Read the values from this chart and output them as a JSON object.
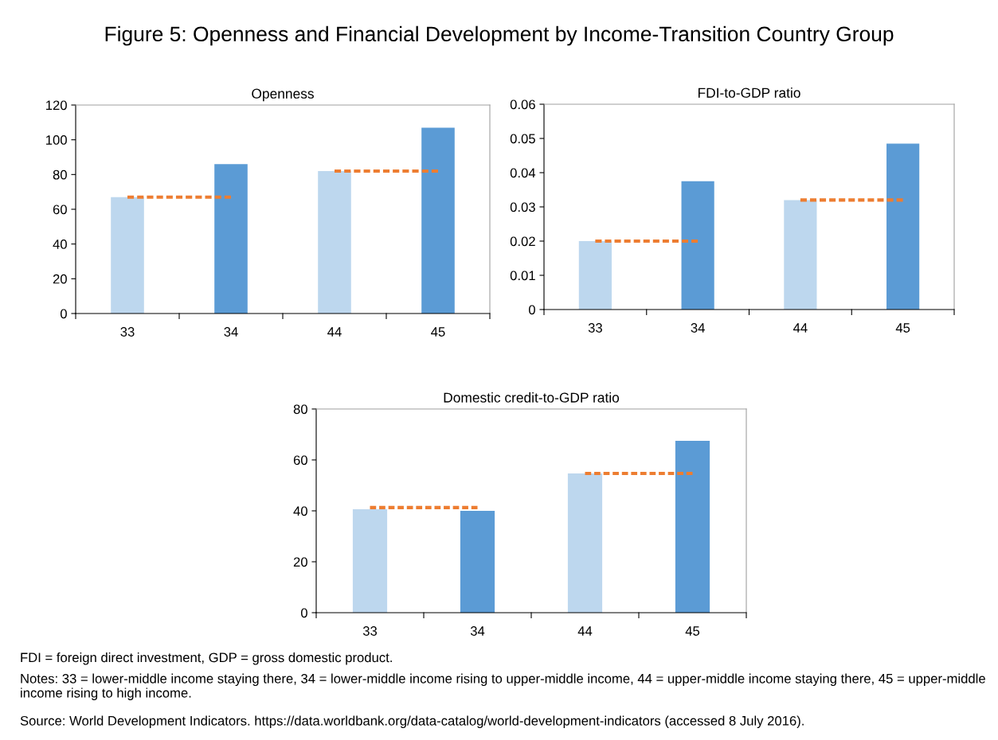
{
  "chart_data": [
    {
      "type": "bar",
      "title": "Figure 5: Openness and Financial Development by Income-Transition Country Group",
      "subtitle": "Openness",
      "categories": [
        "33",
        "34",
        "44",
        "45"
      ],
      "series": [
        {
          "colors": [
            "#bdd7ee",
            "#5b9bd5",
            "#bdd7ee",
            "#5b9bd5"
          ],
          "values": [
            67,
            86,
            82,
            107
          ]
        },
        {
          "type": "line",
          "color": "#ed7d31",
          "line_style": "dashed",
          "marker": "none",
          "values": [
            67,
            67,
            null,
            null
          ]
        },
        {
          "type": "line",
          "color": "#ed7d31",
          "line_style": "dashed",
          "marker": "none",
          "values": [
            null,
            null,
            82,
            82
          ]
        }
      ],
      "ylim": [
        0,
        120
      ],
      "yticks": [
        0,
        20,
        40,
        60,
        80,
        100,
        120
      ],
      "grid": false,
      "legend": false
    },
    {
      "type": "bar",
      "subtitle": "FDI-to-GDP ratio",
      "categories": [
        "33",
        "34",
        "44",
        "45"
      ],
      "series": [
        {
          "colors": [
            "#bdd7ee",
            "#5b9bd5",
            "#bdd7ee",
            "#5b9bd5"
          ],
          "values": [
            0.02,
            0.0375,
            0.032,
            0.0485
          ]
        },
        {
          "type": "line",
          "color": "#ed7d31",
          "line_style": "dashed",
          "marker": "none",
          "values": [
            0.02,
            0.02,
            null,
            null
          ]
        },
        {
          "type": "line",
          "color": "#ed7d31",
          "line_style": "dashed",
          "marker": "none",
          "values": [
            null,
            null,
            0.032,
            0.032
          ]
        }
      ],
      "ylim": [
        0,
        0.06
      ],
      "yticks": [
        0,
        0.01,
        0.02,
        0.03,
        0.04,
        0.05,
        0.06
      ],
      "grid": false,
      "legend": false
    },
    {
      "type": "bar",
      "subtitle": "Domestic credit-to-GDP ratio",
      "categories": [
        "33",
        "34",
        "44",
        "45"
      ],
      "series": [
        {
          "colors": [
            "#bdd7ee",
            "#5b9bd5",
            "#bdd7ee",
            "#5b9bd5"
          ],
          "values": [
            40.6,
            40,
            54.7,
            67.5
          ]
        },
        {
          "type": "line",
          "color": "#ed7d31",
          "line_style": "dashed",
          "marker": "none",
          "values": [
            41.3,
            41.3,
            null,
            null
          ]
        },
        {
          "type": "line",
          "color": "#ed7d31",
          "line_style": "dashed",
          "marker": "none",
          "values": [
            null,
            null,
            54.7,
            54.7
          ]
        }
      ],
      "ylim": [
        0,
        80
      ],
      "yticks": [
        0,
        20,
        40,
        60,
        80
      ],
      "grid": false,
      "legend": false,
      "annotations": [
        "FDI = foreign direct investment, GDP = gross domestic product.",
        "Notes: 33 = lower-middle income staying there, 34 = lower-middle income rising to upper-middle income, 44 = upper-middle income staying there, 45 = upper-middle income rising to high income.",
        "Source: World Development Indicators. https://data.worldbank.org/data-catalog/world-development-indicators (accessed 8 July 2016)."
      ]
    }
  ]
}
